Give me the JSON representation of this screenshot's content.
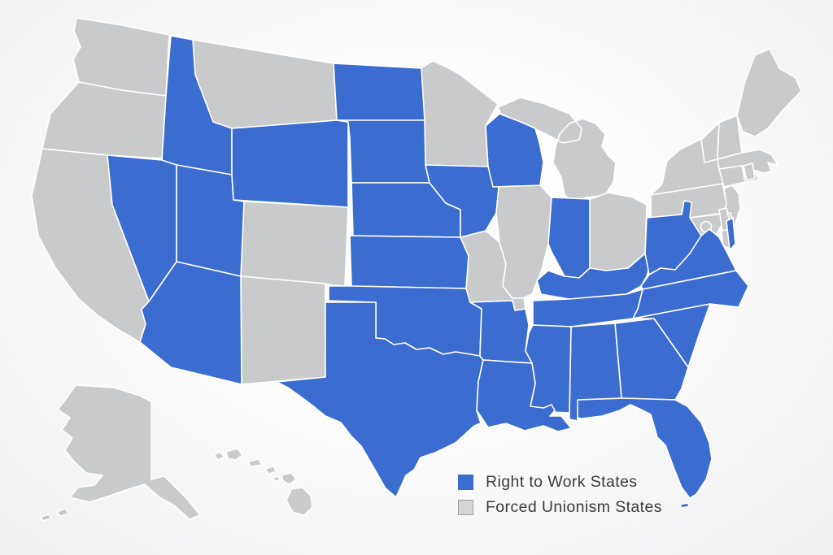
{
  "page": {
    "background_center": "#fdfdfd",
    "background_edge": "#f0f0f2"
  },
  "legend": {
    "items": [
      {
        "id": "rtw",
        "label": "Right to Work States",
        "color": "#3B6CCF",
        "border": "#3B6CCF"
      },
      {
        "id": "forced",
        "label": "Forced Unionism States",
        "color": "#D3D4D6",
        "border": "#9FA1A4"
      }
    ],
    "text_color": "#3c3c3c"
  },
  "map": {
    "name": "United States right-to-work status map",
    "state_border_color": "#ffffff",
    "status_colors": {
      "rtw": "#3B6CCF",
      "forced": "#C9CACC"
    },
    "states": [
      {
        "id": "WA",
        "name": "Washington",
        "status": "forced"
      },
      {
        "id": "OR",
        "name": "Oregon",
        "status": "forced"
      },
      {
        "id": "CA",
        "name": "California",
        "status": "forced"
      },
      {
        "id": "MT",
        "name": "Montana",
        "status": "forced"
      },
      {
        "id": "CO",
        "name": "Colorado",
        "status": "forced"
      },
      {
        "id": "NM",
        "name": "New Mexico",
        "status": "forced"
      },
      {
        "id": "MN",
        "name": "Minnesota",
        "status": "forced"
      },
      {
        "id": "MO",
        "name": "Missouri",
        "status": "forced"
      },
      {
        "id": "IL",
        "name": "Illinois",
        "status": "forced"
      },
      {
        "id": "MI",
        "name": "Michigan",
        "status": "forced"
      },
      {
        "id": "OH",
        "name": "Ohio",
        "status": "forced"
      },
      {
        "id": "PA",
        "name": "Pennsylvania",
        "status": "forced"
      },
      {
        "id": "NY",
        "name": "New York",
        "status": "forced"
      },
      {
        "id": "NJ",
        "name": "New Jersey",
        "status": "forced"
      },
      {
        "id": "MD",
        "name": "Maryland",
        "status": "forced"
      },
      {
        "id": "DE",
        "name": "Delaware",
        "status": "forced"
      },
      {
        "id": "VT",
        "name": "Vermont",
        "status": "forced"
      },
      {
        "id": "NH",
        "name": "New Hampshire",
        "status": "forced"
      },
      {
        "id": "ME",
        "name": "Maine",
        "status": "forced"
      },
      {
        "id": "MA",
        "name": "Massachusetts",
        "status": "forced"
      },
      {
        "id": "CT",
        "name": "Connecticut",
        "status": "forced"
      },
      {
        "id": "RI",
        "name": "Rhode Island",
        "status": "forced"
      },
      {
        "id": "AK",
        "name": "Alaska",
        "status": "forced"
      },
      {
        "id": "HI",
        "name": "Hawaii",
        "status": "forced"
      },
      {
        "id": "DC",
        "name": "District of Columbia",
        "status": "forced"
      },
      {
        "id": "ID",
        "name": "Idaho",
        "status": "rtw"
      },
      {
        "id": "NV",
        "name": "Nevada",
        "status": "rtw"
      },
      {
        "id": "UT",
        "name": "Utah",
        "status": "rtw"
      },
      {
        "id": "AZ",
        "name": "Arizona",
        "status": "rtw"
      },
      {
        "id": "WY",
        "name": "Wyoming",
        "status": "rtw"
      },
      {
        "id": "ND",
        "name": "North Dakota",
        "status": "rtw"
      },
      {
        "id": "SD",
        "name": "South Dakota",
        "status": "rtw"
      },
      {
        "id": "NE",
        "name": "Nebraska",
        "status": "rtw"
      },
      {
        "id": "KS",
        "name": "Kansas",
        "status": "rtw"
      },
      {
        "id": "OK",
        "name": "Oklahoma",
        "status": "rtw"
      },
      {
        "id": "TX",
        "name": "Texas",
        "status": "rtw"
      },
      {
        "id": "IA",
        "name": "Iowa",
        "status": "rtw"
      },
      {
        "id": "WI",
        "name": "Wisconsin",
        "status": "rtw"
      },
      {
        "id": "IN",
        "name": "Indiana",
        "status": "rtw"
      },
      {
        "id": "KY",
        "name": "Kentucky",
        "status": "rtw"
      },
      {
        "id": "WV",
        "name": "West Virginia",
        "status": "rtw"
      },
      {
        "id": "VA",
        "name": "Virginia",
        "status": "rtw"
      },
      {
        "id": "NC",
        "name": "North Carolina",
        "status": "rtw"
      },
      {
        "id": "SC",
        "name": "South Carolina",
        "status": "rtw"
      },
      {
        "id": "TN",
        "name": "Tennessee",
        "status": "rtw"
      },
      {
        "id": "GA",
        "name": "Georgia",
        "status": "rtw"
      },
      {
        "id": "FL",
        "name": "Florida",
        "status": "rtw"
      },
      {
        "id": "AL",
        "name": "Alabama",
        "status": "rtw"
      },
      {
        "id": "MS",
        "name": "Mississippi",
        "status": "rtw"
      },
      {
        "id": "AR",
        "name": "Arkansas",
        "status": "rtw"
      },
      {
        "id": "LA",
        "name": "Louisiana",
        "status": "rtw"
      }
    ]
  }
}
